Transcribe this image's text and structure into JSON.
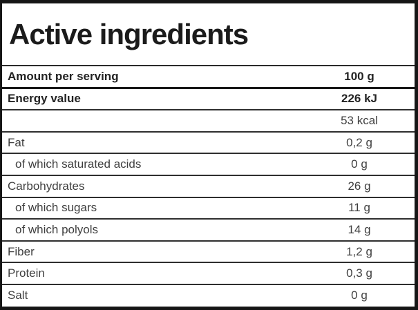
{
  "title": "Active ingredients",
  "table": {
    "rows": [
      {
        "label": "Amount per serving",
        "value": "100 g",
        "bold": true,
        "indent": false,
        "thick_separator": true
      },
      {
        "label": "Energy value",
        "value": "226 kJ",
        "bold": true,
        "indent": false,
        "thick_separator": false
      },
      {
        "label": "",
        "value": "53 kcal",
        "bold": false,
        "indent": false,
        "thick_separator": false
      },
      {
        "label": "Fat",
        "value": "0,2 g",
        "bold": false,
        "indent": false,
        "thick_separator": false
      },
      {
        "label": "of which saturated acids",
        "value": "0 g",
        "bold": false,
        "indent": true,
        "thick_separator": false
      },
      {
        "label": "Carbohydrates",
        "value": "26 g",
        "bold": false,
        "indent": false,
        "thick_separator": false
      },
      {
        "label": "of which sugars",
        "value": "11 g",
        "bold": false,
        "indent": true,
        "thick_separator": false
      },
      {
        "label": "of which polyols",
        "value": "14 g",
        "bold": false,
        "indent": true,
        "thick_separator": false
      },
      {
        "label": "Fiber",
        "value": "1,2 g",
        "bold": false,
        "indent": false,
        "thick_separator": false
      },
      {
        "label": "Protein",
        "value": "0,3 g",
        "bold": false,
        "indent": false,
        "thick_separator": false
      },
      {
        "label": "Salt",
        "value": "0 g",
        "bold": false,
        "indent": false,
        "thick_separator": false
      }
    ]
  },
  "colors": {
    "outer_border": "#161616",
    "row_separator": "#2e2e2e",
    "bold_text": "#232323",
    "regular_text": "#3f3f3f",
    "background": "#ffffff"
  }
}
